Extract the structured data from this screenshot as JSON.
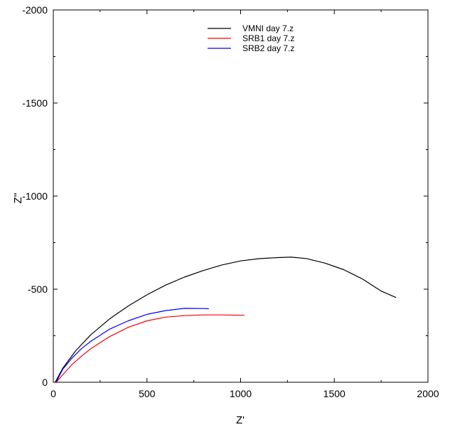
{
  "chart_data": {
    "type": "line",
    "xlabel": "Z'",
    "ylabel": "Z''",
    "xlim": [
      0,
      2000
    ],
    "ylim": [
      0,
      -2000
    ],
    "x_ticks": [
      0,
      500,
      1000,
      1500,
      2000
    ],
    "y_ticks": [
      0,
      -500,
      -1000,
      -1500,
      -2000
    ],
    "x_tick_labels": [
      "0",
      "500",
      "1000",
      "1500",
      "2000"
    ],
    "y_tick_labels": [
      "0",
      "-500",
      "-1000",
      "-1500",
      "-2000"
    ],
    "grid": false,
    "legend_position": "top-center",
    "series": [
      {
        "name": "VMNI day 7.z",
        "color": "#000000",
        "x": [
          10,
          50,
          120,
          200,
          300,
          400,
          500,
          600,
          700,
          800,
          900,
          1000,
          1100,
          1200,
          1270,
          1350,
          1450,
          1550,
          1650,
          1750,
          1830
        ],
        "y": [
          0,
          -75,
          -170,
          -255,
          -340,
          -410,
          -470,
          -522,
          -565,
          -600,
          -630,
          -652,
          -664,
          -670,
          -672,
          -665,
          -640,
          -605,
          -555,
          -490,
          -455
        ]
      },
      {
        "name": "SRB1 day 7.z",
        "color": "#ff0000",
        "x": [
          15,
          50,
          100,
          150,
          200,
          300,
          400,
          500,
          600,
          700,
          800,
          900,
          1000,
          1020
        ],
        "y": [
          0,
          -40,
          -95,
          -140,
          -180,
          -245,
          -295,
          -330,
          -350,
          -358,
          -362,
          -362,
          -360,
          -360
        ]
      },
      {
        "name": "SRB2 day 7.z",
        "color": "#0000ff",
        "x": [
          15,
          50,
          100,
          150,
          200,
          300,
          400,
          500,
          600,
          700,
          800,
          830
        ],
        "y": [
          0,
          -70,
          -130,
          -180,
          -220,
          -285,
          -330,
          -365,
          -385,
          -397,
          -396,
          -395
        ]
      }
    ]
  }
}
